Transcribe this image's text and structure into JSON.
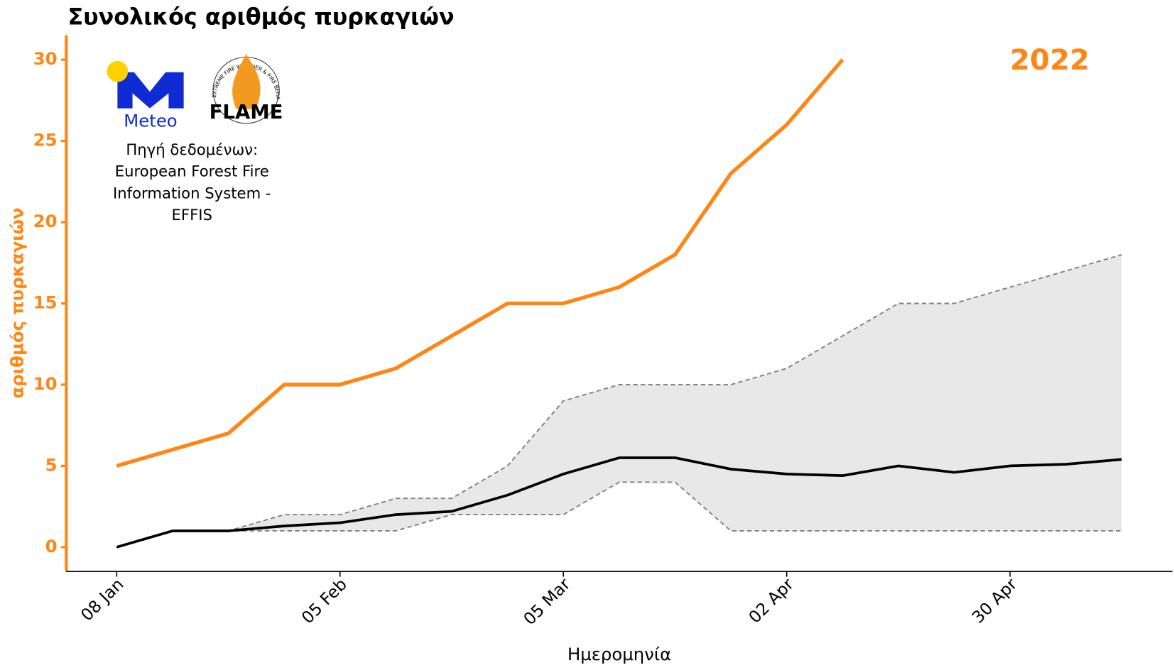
{
  "chart_data": {
    "type": "line",
    "title": "Συνολικός αριθμός πυρκαγιών",
    "annotation": "2022",
    "source_lines": [
      "Πηγή δεδομένων:",
      "European Forest Fire",
      "Information System -",
      "EFFIS"
    ],
    "logos": {
      "meteo": "Meteo",
      "flame": "FLAME",
      "flame_ring": "EXTREME FIRE WEATHER & FIRE BEHAVIOUR"
    },
    "x_label": "Ημερομηνία",
    "y_label": "αριθμός πυρκαγιών",
    "categories": [
      "08 Jan",
      null,
      null,
      null,
      "05 Feb",
      null,
      null,
      null,
      "05 Mar",
      null,
      null,
      null,
      "02 Apr",
      null,
      null,
      null,
      "30 Apr",
      null,
      null
    ],
    "ylim": [
      -1.5,
      31.5
    ],
    "yticks": [
      0,
      5,
      10,
      15,
      20,
      25,
      30
    ],
    "band_color": "#e8e8e8",
    "series": [
      {
        "name": "2022",
        "color": "#ff8614",
        "width": 5,
        "dashed": false,
        "values": [
          5,
          6,
          7,
          10,
          10,
          11,
          13,
          15,
          15,
          16,
          18,
          23,
          26,
          30,
          null,
          null,
          null,
          null,
          null
        ]
      },
      {
        "color": "#000000",
        "width": 3.5,
        "dashed": false,
        "values": [
          0,
          1,
          1,
          1.3,
          1.5,
          2,
          2.2,
          3.2,
          4.5,
          5.5,
          5.5,
          4.8,
          4.5,
          4.4,
          5,
          4.6,
          5,
          5.1,
          5.4
        ]
      },
      {
        "color": "#808080",
        "width": 1.8,
        "dashed": true,
        "values": [
          0,
          1,
          1,
          2,
          2,
          3,
          3,
          5,
          9,
          10,
          10,
          10,
          11,
          13,
          15,
          15,
          16,
          17,
          18
        ]
      },
      {
        "color": "#808080",
        "width": 1.8,
        "dashed": true,
        "values": [
          0,
          1,
          1,
          1,
          1,
          1,
          2,
          2,
          2,
          4,
          4,
          1,
          1,
          1,
          1,
          1,
          1,
          1,
          1
        ]
      }
    ]
  }
}
